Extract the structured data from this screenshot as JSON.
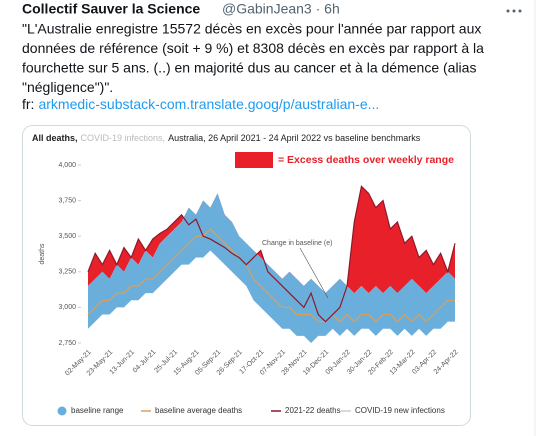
{
  "tweet": {
    "name": "Collectif Sauver la Science",
    "meta": "@GabinJean3 · 6h",
    "lines": [
      "\"L'Australie enregistre 15572 décès en excès pour l'année par rapport aux",
      "données de référence (soit + 9 %) et 8308 décès en excès par rapport à la",
      "fourchette sur 5 ans. (..) en majorité dus au cancer et à la démence (alias",
      "\"négligence\")\"."
    ],
    "link_prefix": "fr:",
    "link": "arkmedic-substack-com.translate.goog/p/australian-e..."
  },
  "chart_data": {
    "type": "band-line",
    "title_parts": [
      "All deaths,",
      "COVID-19 infections,",
      "Australia, 26 April 2021 - 24 April 2022 vs baseline benchmarks"
    ],
    "ylabel": "deaths",
    "categories": [
      "02-May-21",
      null,
      null,
      "23-May-21",
      null,
      null,
      "13-Jun-21",
      null,
      null,
      "04-Jul-21",
      null,
      null,
      "25-Jul-21",
      null,
      null,
      "15-Aug-21",
      null,
      null,
      "05-Sep-21",
      null,
      null,
      "26-Sep-21",
      null,
      null,
      "17-Oct-21",
      null,
      null,
      "07-Nov-21",
      null,
      null,
      "28-Nov-21",
      null,
      null,
      "19-Dec-21",
      null,
      null,
      "09-Jan-22",
      null,
      null,
      "30-Jan-22",
      null,
      null,
      "20-Feb-22",
      null,
      null,
      "13-Mar-22",
      null,
      null,
      "03-Apr-22",
      null,
      null,
      "24-Apr-22"
    ],
    "ylim": [
      2750,
      4000
    ],
    "yticks": [
      {
        "value": 2750,
        "label": "2,750"
      },
      {
        "value": 3000,
        "label": "3,000"
      },
      {
        "value": 3250,
        "label": "3,250"
      },
      {
        "value": 3500,
        "label": "3,500"
      },
      {
        "value": 3750,
        "label": "3,750"
      },
      {
        "value": 4000,
        "label": "4,000"
      }
    ],
    "grid": false,
    "series": [
      {
        "name": "baseline range",
        "color": "#6aaedc",
        "kind": "band",
        "lower": [
          2850,
          2900,
          2950,
          2950,
          3000,
          3000,
          3050,
          3050,
          3100,
          3100,
          3150,
          3200,
          3250,
          3300,
          3300,
          3350,
          3350,
          3400,
          3350,
          3300,
          3250,
          3200,
          3150,
          3050,
          3000,
          2950,
          2900,
          2850,
          2850,
          2800,
          2800,
          2750,
          2800,
          2800,
          2850,
          2800,
          2850,
          2800,
          2850,
          2850,
          2800,
          2850,
          2850,
          2800,
          2850,
          2800,
          2850,
          2800,
          2850,
          2850,
          2900,
          2900
        ],
        "upper": [
          3150,
          3200,
          3250,
          3200,
          3300,
          3250,
          3350,
          3300,
          3400,
          3350,
          3450,
          3500,
          3550,
          3600,
          3700,
          3650,
          3750,
          3700,
          3800,
          3650,
          3600,
          3500,
          3450,
          3400,
          3350,
          3300,
          3250,
          3200,
          3250,
          3200,
          3150,
          3200,
          3150,
          3100,
          3150,
          3200,
          3150,
          3100,
          3150,
          3100,
          3150,
          3100,
          3150,
          3100,
          3150,
          3200,
          3150,
          3100,
          3150,
          3200,
          3250,
          3200
        ]
      },
      {
        "name": "baseline average deaths",
        "color": "#d9a05b",
        "kind": "line",
        "values": [
          2950,
          3000,
          3050,
          3050,
          3100,
          3100,
          3150,
          3150,
          3200,
          3200,
          3250,
          3300,
          3350,
          3400,
          3450,
          3500,
          3500,
          3550,
          3500,
          3450,
          3400,
          3350,
          3300,
          3200,
          3150,
          3100,
          3050,
          3000,
          3000,
          2950,
          2950,
          2950,
          2900,
          2900,
          2950,
          2900,
          2950,
          2900,
          2950,
          2950,
          2900,
          2950,
          2950,
          2900,
          2950,
          2900,
          2950,
          2900,
          2950,
          3000,
          3050,
          3050
        ]
      },
      {
        "name": "2021-22 deaths",
        "color": "#8b1a2b",
        "kind": "line",
        "values": [
          3250,
          3380,
          3300,
          3400,
          3300,
          3420,
          3350,
          3480,
          3400,
          3480,
          3520,
          3550,
          3600,
          3650,
          3580,
          3620,
          3500,
          3480,
          3450,
          3420,
          3380,
          3350,
          3300,
          3350,
          3400,
          3250,
          3200,
          3150,
          3100,
          3050,
          3000,
          3100,
          2950,
          2900,
          2950,
          3000,
          3150,
          3600,
          3850,
          3800,
          3700,
          3750,
          3550,
          3600,
          3450,
          3500,
          3350,
          3400,
          3300,
          3380,
          3250,
          3450
        ]
      },
      {
        "name": "COVID-19 new infections",
        "color": "#cccccc",
        "kind": "line"
      }
    ],
    "annotations": [
      {
        "text": "= Excess deaths over weekly range",
        "color": "#e8202a"
      },
      {
        "text": "Change in baseline (e)"
      }
    ]
  }
}
